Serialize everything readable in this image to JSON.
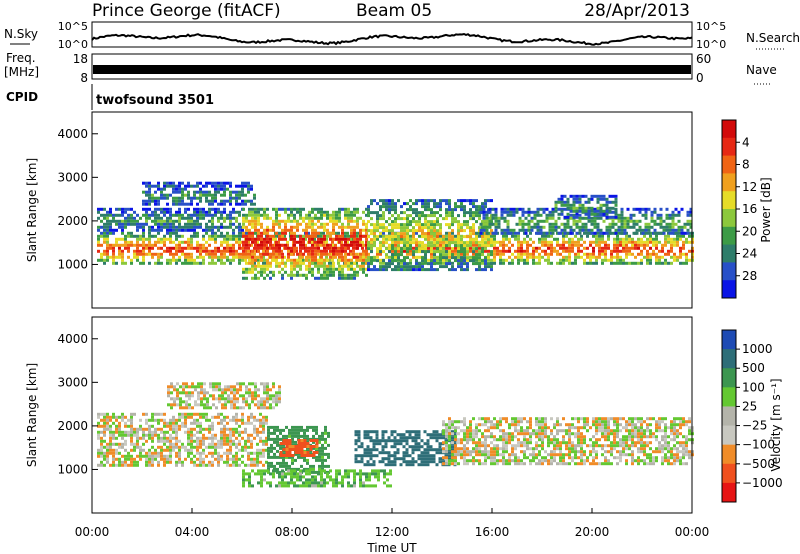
{
  "header": {
    "station": "Prince George (fitACF)",
    "beam": "Beam 05",
    "date": "28/Apr/2013"
  },
  "noise_panel": {
    "left_label": "N.Sky",
    "right_label": "N.Search",
    "tick_top": "10^5",
    "tick_bottom": "10^0",
    "right_tick_top": "10^5",
    "right_tick_bottom": "10^0"
  },
  "freq_panel": {
    "left_label_top": "Freq.",
    "left_label_bottom": "[MHz]",
    "tick_top": "18",
    "tick_bottom": "8",
    "right_label": "Nave",
    "right_tick_top": "60",
    "right_tick_bottom": "0"
  },
  "cpid_panel": {
    "label": "CPID",
    "value": "twofsound 3501"
  },
  "x_axis": {
    "label": "Time UT",
    "ticks": [
      "00:00",
      "04:00",
      "08:00",
      "12:00",
      "16:00",
      "20:00",
      "00:00"
    ]
  },
  "colors": {
    "power": [
      "#0a14e6",
      "#2850c8",
      "#2e7d6a",
      "#3c9b46",
      "#8cc83c",
      "#e6dc28",
      "#f0a01e",
      "#f06414",
      "#e62814",
      "#d20a0a"
    ],
    "velocity": [
      "#e61414",
      "#f0501e",
      "#f08c28",
      "#c8c8c0",
      "#b4b4aa",
      "#64c832",
      "#3c9650",
      "#2e6e78",
      "#1e4bb4"
    ]
  },
  "chart_data": [
    {
      "type": "heatmap",
      "name": "power",
      "ylabel": "Slant Range [km]",
      "yticks": [
        1000,
        2000,
        3000,
        4000
      ],
      "ylim": [
        0,
        4500
      ],
      "xlim_hours": [
        0,
        24
      ],
      "colorbar": {
        "label": "Power [dB]",
        "ticks": [
          "4",
          "8",
          "12",
          "16",
          "20",
          "24",
          "28"
        ],
        "range": [
          0,
          30
        ]
      },
      "bands": [
        {
          "t0": 0.2,
          "t1": 24,
          "r0": 1000,
          "r1": 1750,
          "level": 0.85
        },
        {
          "t0": 0.2,
          "t1": 6,
          "r0": 1800,
          "r1": 2300,
          "level": 0.35
        },
        {
          "t0": 2,
          "t1": 6.5,
          "r0": 2350,
          "r1": 2900,
          "level": 0.3
        },
        {
          "t0": 6,
          "t1": 11,
          "r0": 700,
          "r1": 2300,
          "level": 0.95
        },
        {
          "t0": 11,
          "t1": 16,
          "r0": 900,
          "r1": 2500,
          "level": 0.6
        },
        {
          "t0": 15.5,
          "t1": 24,
          "r0": 1700,
          "r1": 2300,
          "level": 0.4
        },
        {
          "t0": 18.5,
          "t1": 21,
          "r0": 2100,
          "r1": 2600,
          "level": 0.35
        }
      ]
    },
    {
      "type": "heatmap",
      "name": "velocity",
      "ylabel": "Slant Range [km]",
      "yticks": [
        1000,
        2000,
        3000,
        4000
      ],
      "ylim": [
        0,
        4500
      ],
      "xlim_hours": [
        0,
        24
      ],
      "colorbar": {
        "label": "Velocity [m s⁻¹]",
        "ticks": [
          "1000",
          "500",
          "100",
          "25",
          "−25",
          "−100",
          "−500",
          "−1000"
        ],
        "range": [
          -1000,
          1000
        ]
      },
      "bands": [
        {
          "t0": 0.2,
          "t1": 7,
          "r0": 1100,
          "r1": 2300,
          "level": 0.0
        },
        {
          "t0": 3,
          "t1": 7.5,
          "r0": 2400,
          "r1": 3000,
          "level": 0.0
        },
        {
          "t0": 7,
          "t1": 9.5,
          "r0": 900,
          "r1": 2000,
          "level": 150
        },
        {
          "t0": 7.5,
          "t1": 9,
          "r0": 1300,
          "r1": 1700,
          "level": -150
        },
        {
          "t0": 10.5,
          "t1": 14.5,
          "r0": 1100,
          "r1": 1900,
          "level": 400
        },
        {
          "t0": 6,
          "t1": 12,
          "r0": 600,
          "r1": 1000,
          "level": 80
        },
        {
          "t0": 14,
          "t1": 24,
          "r0": 1100,
          "r1": 2200,
          "level": 0.0
        }
      ]
    }
  ]
}
